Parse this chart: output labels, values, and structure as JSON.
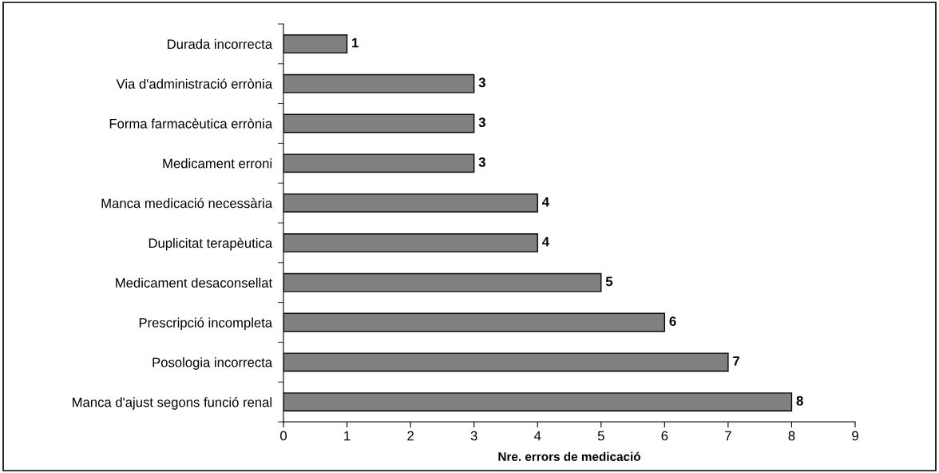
{
  "chart_data": {
    "type": "bar",
    "orientation": "horizontal",
    "xlabel": "Nre. errors de medicació",
    "categories": [
      "Durada incorrecta",
      "Via d'administració errònia",
      "Forma farmacèutica errònia",
      "Medicament erroni",
      "Manca medicació necessària",
      "Duplicitat terapèutica",
      "Medicament desaconsellat",
      "Prescripció incompleta",
      "Posologia incorrecta",
      "Manca d'ajust segons funció renal"
    ],
    "values": [
      1,
      3,
      3,
      3,
      4,
      4,
      5,
      6,
      7,
      8
    ],
    "color": "#808080",
    "xlim": [
      0,
      9
    ],
    "xticks": [
      0,
      1,
      2,
      3,
      4,
      5,
      6,
      7,
      8,
      9
    ],
    "data_labels": true,
    "grid": false
  }
}
